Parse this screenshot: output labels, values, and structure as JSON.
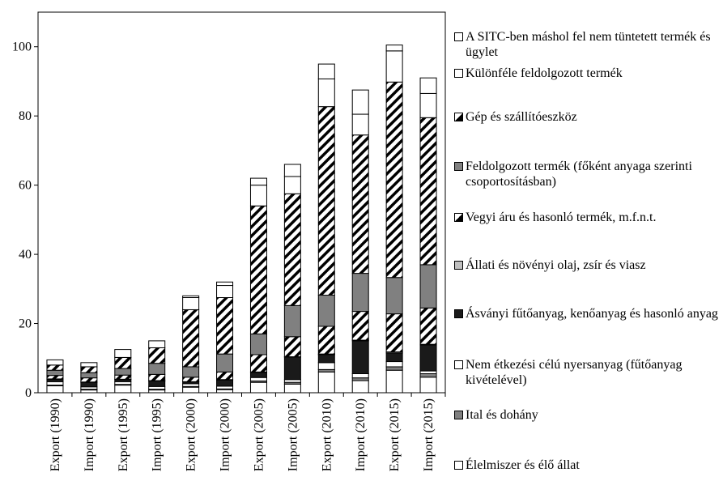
{
  "chart_data": {
    "type": "stacked_bar",
    "categories": [
      "Export (1990)",
      "Import (1990)",
      "Export (1995)",
      "Import (1995)",
      "Export (2000)",
      "Import (2000)",
      "Export (2005)",
      "Import (2005)",
      "Export (2010)",
      "Import (2010)",
      "Export (2015)",
      "Import (2015)"
    ],
    "ylim": [
      0,
      110
    ],
    "yticks": [
      0,
      20,
      40,
      60,
      80,
      100
    ],
    "grid": false,
    "series": [
      {
        "name": "Élelmiszer és élő állat",
        "color": "#ffffff",
        "values": [
          2,
          0.8,
          2.2,
          0.8,
          1.6,
          0.9,
          3,
          2.5,
          6,
          3.5,
          6.5,
          4.5
        ]
      },
      {
        "name": "Ital és dohány",
        "color": "#808080",
        "values": [
          0.2,
          0.2,
          0.2,
          0.2,
          0.2,
          0.2,
          0.4,
          0.5,
          0.7,
          0.8,
          1,
          1
        ]
      },
      {
        "name": "Nem étkezési célú nyersanyag (fűtőanyag kivételével)",
        "color": "#ffffff",
        "values": [
          1,
          0.7,
          0.8,
          0.8,
          0.8,
          0.8,
          1,
          0.8,
          2,
          1.2,
          1.5,
          0.8
        ]
      },
      {
        "name": "Ásványi fűtőanyag, kenőanyag és hasonló anyag",
        "color": "#1a1a1a",
        "values": [
          0.7,
          1.3,
          0.6,
          1.6,
          0.5,
          1.8,
          1.5,
          6.5,
          2.3,
          9.5,
          2.5,
          7.5
        ]
      },
      {
        "name": "Állati és növényi olaj, zsír és viasz",
        "color": "#c0c0c0",
        "values": [
          0.1,
          0.1,
          0.1,
          0.1,
          0.1,
          0.1,
          0.1,
          0.1,
          0.2,
          0.2,
          0.3,
          0.2
        ]
      },
      {
        "name": "Vegyi áru és hasonló termék, m.f.n.t.",
        "color": "#ffffff",
        "pattern": "hatch",
        "values": [
          1,
          1.2,
          1.2,
          1.8,
          1.3,
          2.2,
          5,
          5.8,
          8,
          8.3,
          11,
          10.5
        ]
      },
      {
        "name": "Feldolgozott termék (főként anyaga szerinti csoportosításban)",
        "color": "#808080",
        "values": [
          1.5,
          1.5,
          1.9,
          3.2,
          3,
          5.2,
          6,
          9,
          9,
          11,
          10.5,
          12.5
        ]
      },
      {
        "name": "Gép és szállítóeszköz",
        "color": "#ffffff",
        "pattern": "hatch",
        "values": [
          1.5,
          1.7,
          3.2,
          4.5,
          16.5,
          16.3,
          37,
          32.3,
          54.5,
          40,
          56.5,
          42.5
        ]
      },
      {
        "name": "Különféle feldolgozott termék",
        "color": "#ffffff",
        "values": [
          1.5,
          1.2,
          2.3,
          2,
          3.5,
          3.5,
          6,
          5,
          8,
          6,
          9,
          7
        ]
      },
      {
        "name": "A SITC-ben máshol fel nem tüntetett termék és ügylet",
        "color": "#ffffff",
        "values": [
          0,
          0,
          0,
          0,
          0.5,
          1,
          2,
          3.5,
          4.3,
          7,
          1.7,
          4.5
        ]
      }
    ]
  }
}
